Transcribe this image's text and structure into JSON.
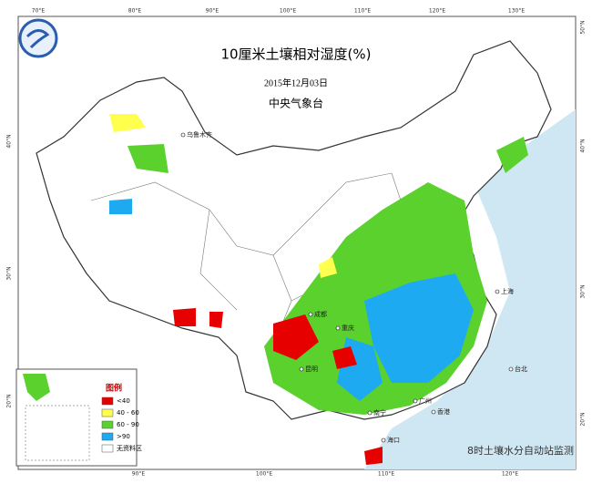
{
  "header": {
    "title": "10厘米土壤相对湿度(%)",
    "date": "2015年12月03日",
    "agency": "中央气象台"
  },
  "legend": {
    "title": "图例",
    "items": [
      {
        "label": "<40",
        "color": "#e60000"
      },
      {
        "label": "40 - 60",
        "color": "#ffff4d"
      },
      {
        "label": "60 - 90",
        "color": "#5ad12d"
      },
      {
        "label": ">90",
        "color": "#1eaaf0"
      },
      {
        "label": "无资料区",
        "color": "#ffffff"
      }
    ]
  },
  "footer": "8时土壤水分自动站监测",
  "top_longitudes": [
    "70°E",
    "80°E",
    "90°E",
    "100°E",
    "110°E",
    "120°E",
    "130°E"
  ],
  "bottom_longitudes": [
    "90°E",
    "100°E",
    "110°E",
    "120°E"
  ],
  "left_latitudes": [
    "40°N",
    "30°N",
    "20°N"
  ],
  "right_latitudes": [
    "50°N",
    "40°N",
    "30°N",
    "20°N"
  ],
  "cities": [
    "乌鲁木齐",
    "成都",
    "重庆",
    "昆明",
    "上海",
    "广州",
    "香港",
    "海口",
    "台北",
    "南宁"
  ]
}
